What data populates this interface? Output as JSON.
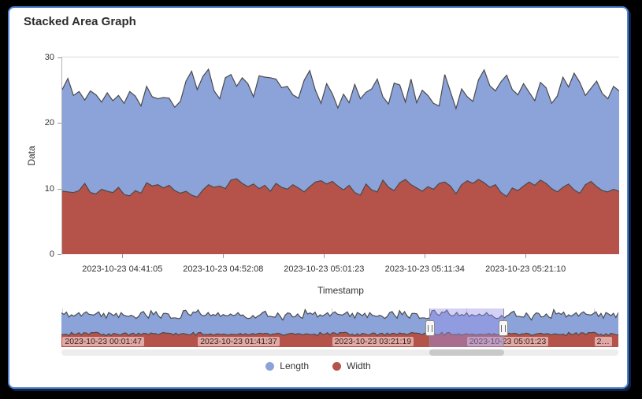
{
  "title": "Stacked Area Graph",
  "legend": {
    "items": [
      {
        "label": "Length",
        "color": "#8CA3D9"
      },
      {
        "label": "Width",
        "color": "#B5534A"
      }
    ]
  },
  "chart_data": {
    "type": "area",
    "stacked": true,
    "title": "Stacked Area Graph",
    "xlabel": "Timestamp",
    "ylabel": "Data",
    "ylim": [
      0,
      30
    ],
    "y_ticks": [
      0,
      10,
      20,
      30
    ],
    "grid": "top-border-only",
    "legend_position": "bottom",
    "colors": {
      "length_fill": "#8CA3D9",
      "width_fill": "#B5534A",
      "line_stroke": "#4a4a4a"
    },
    "x_ticks": {
      "labels": [
        "2023-10-23 04:41:05",
        "2023-10-23 04:52:08",
        "2023-10-23 05:01:23",
        "2023-10-23 05:11:34",
        "2023-10-23 05:21:10"
      ],
      "fracs": [
        0.108,
        0.289,
        0.47,
        0.651,
        0.832
      ]
    },
    "series": [
      {
        "name": "Width",
        "color": "#B5534A",
        "values": [
          9.6,
          9.5,
          9.4,
          9.7,
          10.8,
          9.4,
          9.2,
          9.9,
          9.6,
          9.4,
          10.2,
          9.1,
          8.9,
          9.7,
          9.3,
          10.9,
          10.4,
          10.6,
          10.1,
          10.5,
          9.7,
          9.3,
          9.6,
          9.0,
          8.7,
          9.8,
          10.6,
          10.2,
          10.4,
          10.0,
          11.3,
          11.5,
          10.8,
          10.3,
          10.7,
          10.0,
          10.5,
          9.6,
          10.8,
          10.2,
          9.9,
          10.6,
          10.1,
          9.5,
          10.3,
          11.0,
          11.2,
          10.7,
          11.1,
          10.4,
          9.8,
          10.5,
          9.4,
          9.0,
          10.7,
          9.8,
          9.5,
          11.3,
          10.2,
          9.7,
          10.9,
          11.4,
          10.6,
          10.1,
          9.6,
          10.3,
          9.9,
          10.8,
          11.0,
          10.4,
          9.2,
          10.6,
          11.2,
          10.8,
          11.4,
          10.9,
          10.2,
          10.6,
          9.4,
          8.8,
          10.1,
          9.7,
          10.4,
          11.0,
          10.5,
          11.3,
          10.8,
          10.0,
          9.5,
          10.2,
          10.7,
          9.8,
          9.3,
          10.6,
          11.1,
          10.3,
          9.7,
          9.5,
          9.9,
          9.6
        ]
      },
      {
        "name": "Length",
        "color": "#8CA3D9",
        "values": [
          15.5,
          17.3,
          14.8,
          15.1,
          12.7,
          15.5,
          15.1,
          13.3,
          15.0,
          14.0,
          14.0,
          13.9,
          15.9,
          14.4,
          13.3,
          14.7,
          13.6,
          13.1,
          13.8,
          13.3,
          12.7,
          14.0,
          16.8,
          18.9,
          16.4,
          17.3,
          17.6,
          14.7,
          13.3,
          16.9,
          16.1,
          14.1,
          16.1,
          15.7,
          13.3,
          17.2,
          16.5,
          17.3,
          15.9,
          15.2,
          15.7,
          13.7,
          13.7,
          17.0,
          17.7,
          14.0,
          11.8,
          15.3,
          13.4,
          11.9,
          14.6,
          12.6,
          16.5,
          14.7,
          14.0,
          15.4,
          17.2,
          12.7,
          12.7,
          16.4,
          14.9,
          11.8,
          16.1,
          13.0,
          15.4,
          13.9,
          13.1,
          11.8,
          16.4,
          14.4,
          13.0,
          14.6,
          12.8,
          12.5,
          15.2,
          17.2,
          15.5,
          14.3,
          16.9,
          18.5,
          15.0,
          14.6,
          15.6,
          13.7,
          12.9,
          14.9,
          14.6,
          13.0,
          14.6,
          16.8,
          14.8,
          17.8,
          16.9,
          13.6,
          14.2,
          16.1,
          14.8,
          14.2,
          15.7,
          15.3
        ]
      }
    ],
    "navigator": {
      "description": "full-range overview of the same two series",
      "x_ticks": {
        "labels": [
          "2023-10-23 00:01:47",
          "2023-10-23 01:41:37",
          "2023-10-23 03:21:19",
          "2023-10-23 05:01:23",
          "2…"
        ],
        "fracs": [
          0.002,
          0.245,
          0.486,
          0.728,
          0.957
        ]
      },
      "selection": {
        "start_frac": 0.66,
        "end_frac": 0.795
      },
      "overlay_color": "rgba(152,146,233,0.42)"
    }
  }
}
